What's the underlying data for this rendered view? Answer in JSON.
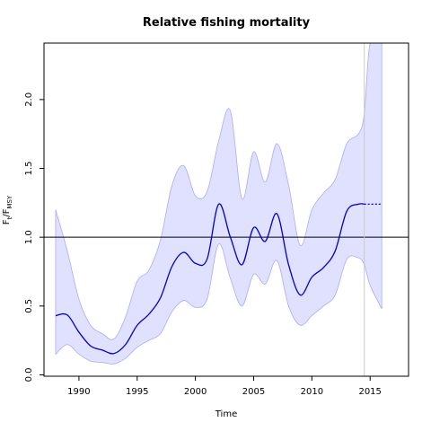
{
  "chart_data": {
    "type": "line",
    "title": "Relative fishing mortality",
    "xlabel": "Time",
    "ylabel": {
      "base": "F",
      "num_sub": "t",
      "den_sub": "MSY"
    },
    "xlim": [
      1987.0,
      2018.3
    ],
    "ylim": [
      -0.01,
      2.41
    ],
    "x_ticks": [
      1990,
      1995,
      2000,
      2005,
      2010,
      2015
    ],
    "y_ticks": [
      "0.0",
      "0.5",
      "1.0",
      "1.5",
      "2.0"
    ],
    "reference_line": 1.0,
    "vertical_line_x": 2014.5,
    "series": [
      {
        "role": "estimate",
        "color": "#0000cc",
        "x": [
          1988,
          1989,
          1990,
          1991,
          1992,
          1993,
          1994,
          1995,
          1996,
          1997,
          1998,
          1999,
          2000,
          2001,
          2002,
          2003,
          2004,
          2005,
          2006,
          2007,
          2008,
          2009,
          2010,
          2011,
          2012,
          2013,
          2014,
          2014.5
        ],
        "y": [
          0.43,
          0.435,
          0.31,
          0.21,
          0.18,
          0.155,
          0.22,
          0.36,
          0.44,
          0.56,
          0.79,
          0.89,
          0.81,
          0.84,
          1.24,
          1.0,
          0.8,
          1.07,
          0.97,
          1.17,
          0.8,
          0.58,
          0.71,
          0.78,
          0.9,
          1.19,
          1.24,
          1.24
        ]
      },
      {
        "role": "projection",
        "color": "#0000cc",
        "x": [
          2014.5,
          2016
        ],
        "y": [
          1.24,
          1.24
        ]
      },
      {
        "role": "confidence-interval",
        "fill": "#e0e0ff",
        "edge": "#aaaaff",
        "x": [
          1988,
          1989,
          1990,
          1991,
          1992,
          1993,
          1994,
          1995,
          1996,
          1997,
          1998,
          1999,
          2000,
          2001,
          2002,
          2003,
          2004,
          2005,
          2006,
          2007,
          2008,
          2009,
          2010,
          2011,
          2012,
          2013,
          2014,
          2014.5,
          2015,
          2016
        ],
        "upper": [
          1.2,
          0.9,
          0.55,
          0.36,
          0.3,
          0.26,
          0.42,
          0.68,
          0.76,
          0.98,
          1.38,
          1.52,
          1.3,
          1.33,
          1.7,
          1.92,
          1.28,
          1.62,
          1.4,
          1.68,
          1.38,
          0.94,
          1.2,
          1.32,
          1.42,
          1.68,
          1.75,
          1.9,
          2.41,
          2.41
        ],
        "lower": [
          0.15,
          0.22,
          0.15,
          0.1,
          0.09,
          0.08,
          0.12,
          0.2,
          0.25,
          0.3,
          0.46,
          0.54,
          0.49,
          0.55,
          0.95,
          0.7,
          0.5,
          0.73,
          0.66,
          0.83,
          0.5,
          0.36,
          0.43,
          0.5,
          0.58,
          0.84,
          0.85,
          0.8,
          0.65,
          0.48
        ]
      }
    ]
  }
}
